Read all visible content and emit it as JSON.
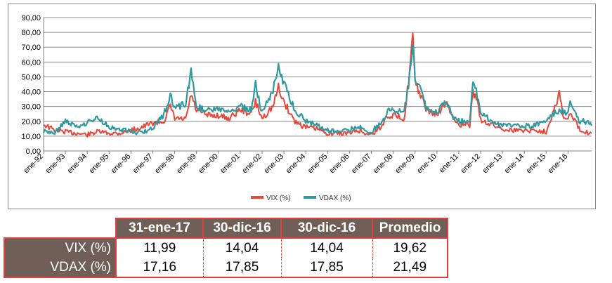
{
  "chart_data": {
    "type": "line",
    "title": "",
    "xlabel": "",
    "ylabel": "",
    "ylim": [
      0,
      90
    ],
    "yticks": [
      "0,00",
      "10,00",
      "20,00",
      "30,00",
      "40,00",
      "50,00",
      "60,00",
      "70,00",
      "80,00",
      "90,00"
    ],
    "xticks": [
      "ene-92",
      "ene-93",
      "ene-94",
      "ene-95",
      "ene-96",
      "ene-97",
      "ene-98",
      "ene-99",
      "ene-00",
      "ene-01",
      "ene-02",
      "ene-03",
      "ene-04",
      "ene-05",
      "ene-06",
      "ene-07",
      "ene-08",
      "ene-09",
      "ene-10",
      "ene-11",
      "ene-12",
      "ene-13",
      "ene-14",
      "ene-15",
      "ene-16"
    ],
    "grid": true,
    "legend_position": "bottom",
    "x": [
      1992.0,
      1992.5,
      1993.0,
      1993.5,
      1994.0,
      1994.5,
      1995.0,
      1995.5,
      1996.0,
      1996.5,
      1997.0,
      1997.5,
      1997.8,
      1998.0,
      1998.5,
      1998.75,
      1999.0,
      1999.5,
      2000.0,
      2000.5,
      2001.0,
      2001.5,
      2001.7,
      2002.0,
      2002.5,
      2002.75,
      2003.0,
      2003.5,
      2004.0,
      2004.5,
      2005.0,
      2005.5,
      2006.0,
      2006.4,
      2006.7,
      2007.0,
      2007.5,
      2007.7,
      2008.0,
      2008.5,
      2008.8,
      2008.9,
      2009.0,
      2009.2,
      2009.5,
      2010.0,
      2010.4,
      2010.7,
      2011.0,
      2011.5,
      2011.65,
      2011.8,
      2012.0,
      2012.5,
      2013.0,
      2013.5,
      2014.0,
      2014.5,
      2015.0,
      2015.6,
      2015.8,
      2016.0,
      2016.1,
      2016.5,
      2016.8,
      2017.08
    ],
    "series": [
      {
        "name": "VIX (%)",
        "color": "#e8463a",
        "values": [
          18,
          14,
          13,
          12,
          11,
          13,
          12,
          12,
          14,
          16,
          19,
          20,
          30,
          22,
          21,
          38,
          27,
          24,
          24,
          22,
          28,
          25,
          33,
          22,
          30,
          43,
          33,
          20,
          16,
          15,
          12,
          12,
          12,
          14,
          12,
          11,
          17,
          24,
          24,
          22,
          60,
          80,
          45,
          40,
          28,
          24,
          33,
          23,
          18,
          17,
          40,
          36,
          21,
          18,
          15,
          14,
          14,
          14,
          13,
          39,
          22,
          21,
          26,
          15,
          13,
          12
        ]
      },
      {
        "name": "VDAX (%)",
        "color": "#2e9aa0",
        "values": [
          13,
          12,
          20,
          16,
          19,
          22,
          16,
          15,
          13,
          12,
          16,
          24,
          38,
          28,
          32,
          54,
          30,
          27,
          28,
          25,
          30,
          28,
          45,
          26,
          42,
          56,
          45,
          28,
          20,
          18,
          14,
          13,
          14,
          17,
          14,
          13,
          20,
          26,
          28,
          26,
          55,
          70,
          50,
          45,
          30,
          26,
          34,
          24,
          20,
          20,
          45,
          40,
          26,
          20,
          17,
          17,
          17,
          17,
          20,
          28,
          26,
          25,
          32,
          20,
          20,
          17
        ]
      }
    ]
  },
  "table": {
    "headers": [
      "31-ene-17",
      "30-dic-16",
      "30-dic-16",
      "Promedio"
    ],
    "rows": [
      {
        "label": "VIX (%)",
        "values": [
          "11,99",
          "14,04",
          "14,04",
          "19,62"
        ]
      },
      {
        "label": "VDAX (%)",
        "values": [
          "17,16",
          "17,85",
          "17,85",
          "21,49"
        ]
      }
    ]
  }
}
